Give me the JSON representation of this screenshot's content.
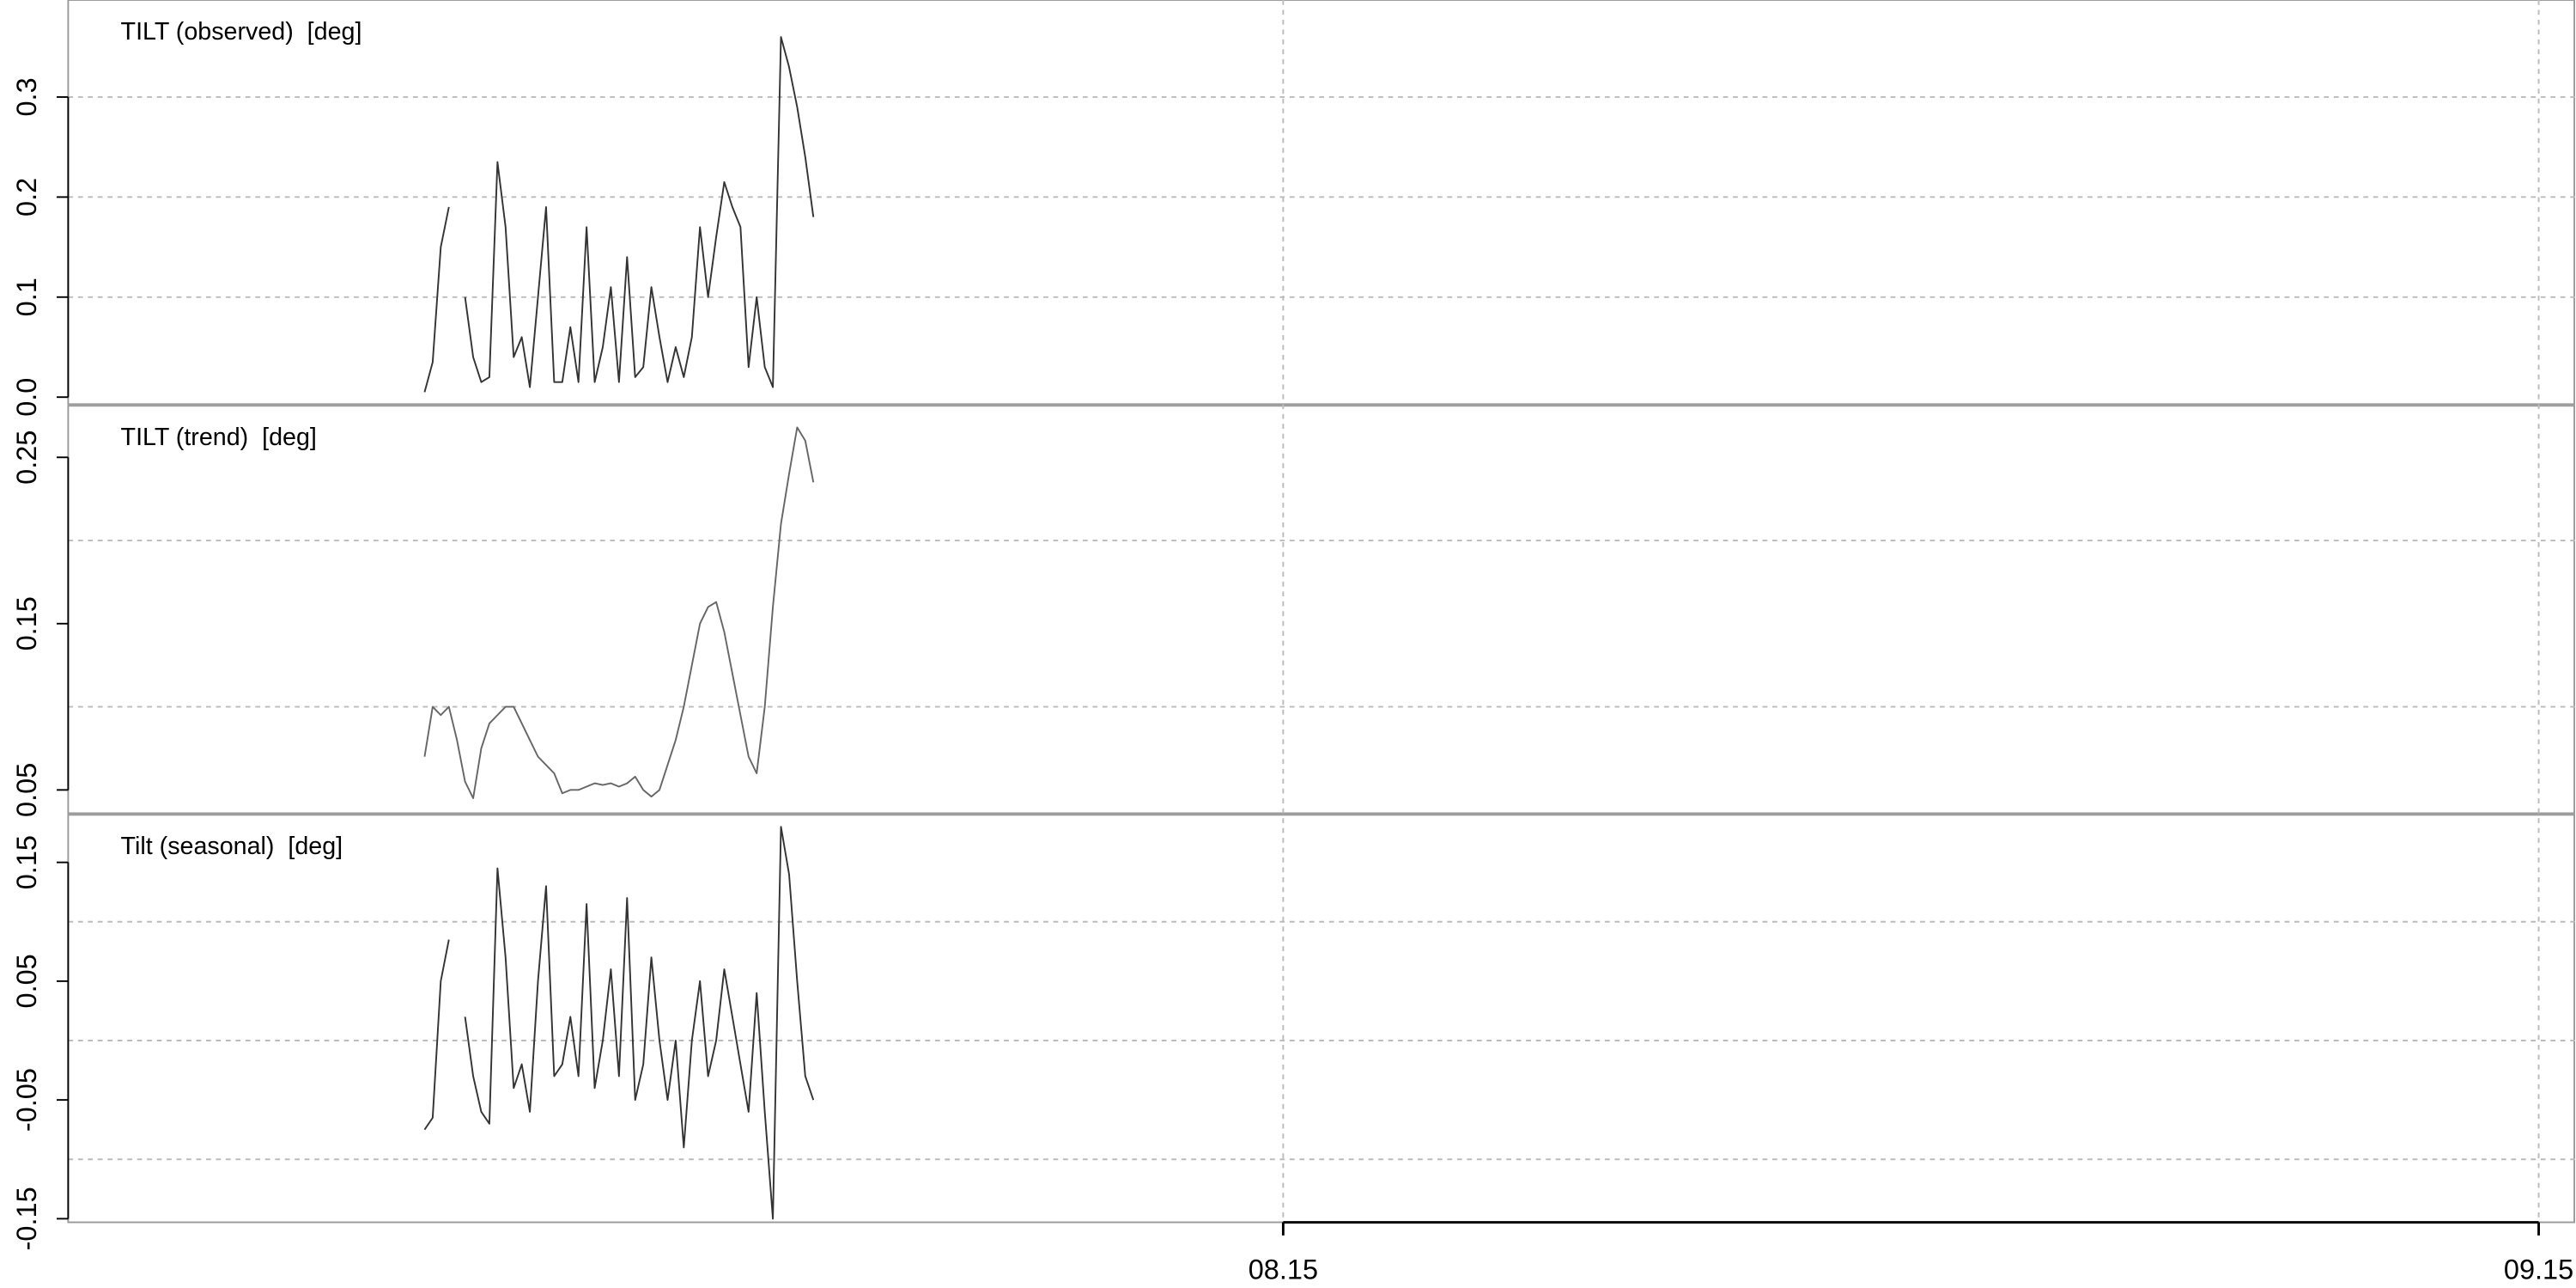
{
  "chart_data": [
    {
      "type": "line",
      "title": "TILT (observed)  [deg]",
      "x": [
        9.8,
        10.0,
        10.2,
        10.4,
        10.6,
        10.8,
        11.0,
        11.2,
        11.4,
        11.6,
        11.8,
        12.0,
        12.2,
        12.4,
        12.6,
        12.8,
        13.0,
        13.2,
        13.4,
        13.6,
        13.8,
        14.0,
        14.2,
        14.4,
        14.6,
        14.8,
        15.0,
        15.2,
        15.4,
        15.6,
        15.8,
        16.0,
        16.2,
        16.4,
        16.6,
        16.8,
        17.0,
        17.2,
        17.4,
        17.6,
        17.8,
        18.0,
        18.2,
        18.4,
        18.6,
        18.8,
        19.0,
        19.2,
        19.4
      ],
      "series": [
        {
          "color": "#333333",
          "values": [
            0.005,
            0.035,
            0.15,
            0.19,
            null,
            0.1,
            0.04,
            0.015,
            0.02,
            0.235,
            0.17,
            0.04,
            0.06,
            0.01,
            0.1,
            0.19,
            0.015,
            0.015,
            0.07,
            0.015,
            0.17,
            0.015,
            0.05,
            0.11,
            0.015,
            0.14,
            0.02,
            0.03,
            0.11,
            0.06,
            0.015,
            0.05,
            0.02,
            0.06,
            0.17,
            0.1,
            0.16,
            0.215,
            0.19,
            0.17,
            0.03,
            0.1,
            0.03,
            0.01,
            0.36,
            0.33,
            0.29,
            0.24,
            0.18
          ]
        }
      ],
      "xlim": [
        1,
        62.9
      ],
      "ylim": [
        -0.007,
        0.397
      ],
      "yticks": [
        {
          "value": 0,
          "label": "0.0"
        },
        0.1,
        0.2,
        0.3
      ],
      "ygrid": [
        0.1,
        0.2,
        0.3
      ]
    },
    {
      "type": "line",
      "title": "TILT (trend)  [deg]",
      "x": [
        9.8,
        10.0,
        10.2,
        10.4,
        10.6,
        10.8,
        11.0,
        11.2,
        11.4,
        11.6,
        11.8,
        12.0,
        12.2,
        12.4,
        12.6,
        12.8,
        13.0,
        13.2,
        13.4,
        13.6,
        13.8,
        14.0,
        14.2,
        14.4,
        14.6,
        14.8,
        15.0,
        15.2,
        15.4,
        15.6,
        15.8,
        16.0,
        16.2,
        16.4,
        16.6,
        16.8,
        17.0,
        17.2,
        17.4,
        17.6,
        17.8,
        18.0,
        18.2,
        18.4,
        18.6,
        18.8,
        19.0,
        19.2,
        19.4
      ],
      "series": [
        {
          "color": "#666666",
          "values": [
            0.07,
            0.1,
            0.095,
            0.1,
            0.08,
            0.055,
            0.045,
            0.075,
            0.09,
            0.095,
            0.1,
            0.1,
            0.09,
            0.08,
            0.07,
            0.065,
            0.06,
            0.048,
            0.05,
            0.05,
            0.052,
            0.054,
            0.053,
            0.054,
            0.052,
            0.054,
            0.058,
            0.05,
            0.046,
            0.05,
            0.065,
            0.08,
            0.1,
            0.125,
            0.15,
            0.16,
            0.163,
            0.145,
            0.12,
            0.095,
            0.07,
            0.06,
            0.1,
            0.16,
            0.21,
            0.24,
            0.268,
            0.26,
            0.235
          ]
        }
      ],
      "xlim": [
        1,
        62.9
      ],
      "ylim": [
        0.036,
        0.281
      ],
      "yticks": [
        0.05,
        0.15,
        0.25
      ],
      "ygrid": [
        0.1,
        0.2
      ]
    },
    {
      "type": "line",
      "title": "Tilt (seasonal)  [deg]",
      "x": [
        9.8,
        10.0,
        10.2,
        10.4,
        10.6,
        10.8,
        11.0,
        11.2,
        11.4,
        11.6,
        11.8,
        12.0,
        12.2,
        12.4,
        12.6,
        12.8,
        13.0,
        13.2,
        13.4,
        13.6,
        13.8,
        14.0,
        14.2,
        14.4,
        14.6,
        14.8,
        15.0,
        15.2,
        15.4,
        15.6,
        15.8,
        16.0,
        16.2,
        16.4,
        16.6,
        16.8,
        17.0,
        17.2,
        17.4,
        17.6,
        17.8,
        18.0,
        18.2,
        18.4,
        18.6,
        18.8,
        19.0,
        19.2,
        19.4
      ],
      "series": [
        {
          "color": "#333333",
          "values": [
            -0.075,
            -0.065,
            0.05,
            0.085,
            null,
            0.02,
            -0.03,
            -0.06,
            -0.07,
            0.145,
            0.07,
            -0.04,
            -0.02,
            -0.06,
            0.05,
            0.13,
            -0.03,
            -0.02,
            0.02,
            -0.03,
            0.115,
            -0.04,
            0.0,
            0.06,
            -0.03,
            0.12,
            -0.05,
            -0.02,
            0.07,
            0.0,
            -0.05,
            0.0,
            -0.09,
            0.0,
            0.05,
            -0.03,
            0.0,
            0.06,
            0.02,
            -0.02,
            -0.06,
            0.04,
            -0.06,
            -0.15,
            0.18,
            0.14,
            0.05,
            -0.03,
            -0.05
          ]
        }
      ],
      "xlim": [
        1,
        62.9
      ],
      "ylim": [
        -0.153,
        0.19
      ],
      "yticks": [
        -0.15,
        -0.05,
        0.05,
        0.15
      ],
      "ygrid": [
        -0.1,
        0.0,
        0.1
      ],
      "xticks": [
        {
          "value": 31,
          "label": "08.15"
        },
        {
          "value": 62,
          "label": "09.15"
        }
      ]
    }
  ]
}
